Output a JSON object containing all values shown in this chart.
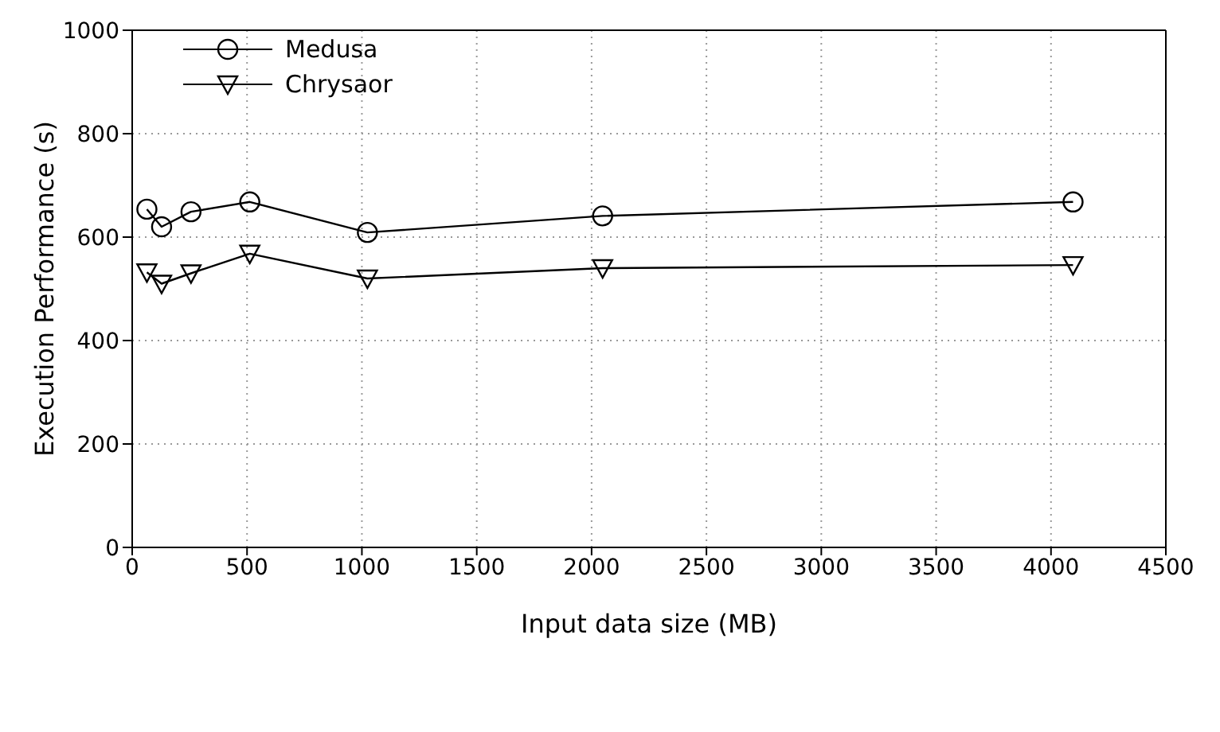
{
  "chart_data": {
    "type": "line",
    "xlabel": "Input data size (MB)",
    "ylabel": "Execution Performance (s)",
    "x": [
      64,
      128,
      256,
      512,
      1024,
      2048,
      4096
    ],
    "series": [
      {
        "name": "Medusa",
        "color": "#000000",
        "marker": "circle",
        "values": [
          654,
          620,
          649,
          668,
          609,
          641,
          668
        ]
      },
      {
        "name": "Chrysaor",
        "color": "#000000",
        "marker": "triangle",
        "values": [
          532,
          510,
          530,
          568,
          520,
          540,
          546
        ]
      }
    ],
    "xlim": [
      0,
      4500
    ],
    "xticks": [
      0,
      500,
      1000,
      1500,
      2000,
      2500,
      3000,
      3500,
      4000,
      4500
    ],
    "ylim": [
      0,
      1000
    ],
    "yticks": [
      0,
      200,
      400,
      600,
      800,
      1000
    ],
    "grid": true,
    "legend": "top left",
    "line_style": "solid"
  }
}
